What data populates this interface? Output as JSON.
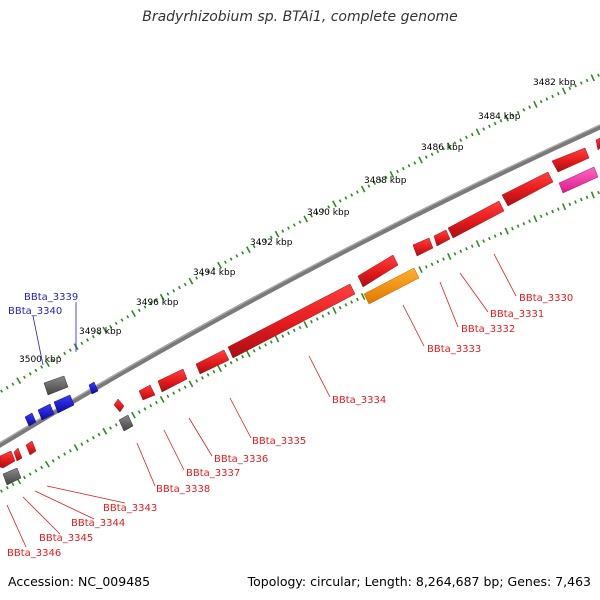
{
  "map": {
    "title": "Bradyrhizobium sp. BTAi1, complete genome",
    "accession": "Accession: NC_009485",
    "summary": "Topology: circular; Length: 8,264,687 bp; Genes: 7,463"
  },
  "scale_labels": [
    "3482 kbp",
    "3484 kbp",
    "3486 kbp",
    "3488 kbp",
    "3490 kbp",
    "3492 kbp",
    "3494 kbp",
    "3496 kbp",
    "3498 kbp",
    "3500 kbp"
  ],
  "genes": [
    {
      "label": "BBta_3330",
      "color": "#e31a1c",
      "strand": "+"
    },
    {
      "label": "BBta_3331",
      "color": "#e31a1c",
      "strand": "+"
    },
    {
      "label": "BBta_3332",
      "color": "#e31a1c",
      "strand": "+"
    },
    {
      "label": "BBta_3333",
      "color": "#e31a1c",
      "strand": "+"
    },
    {
      "label": "BBta_3334",
      "color": "#e31a1c",
      "strand": "+"
    },
    {
      "label": "BBta_3335",
      "color": "#e31a1c",
      "strand": "+"
    },
    {
      "label": "BBta_3336",
      "color": "#e31a1c",
      "strand": "+"
    },
    {
      "label": "BBta_3337",
      "color": "#e31a1c",
      "strand": "+"
    },
    {
      "label": "BBta_3338",
      "color": "#e31a1c",
      "strand": "-"
    },
    {
      "label": "BBta_3339",
      "color": "#1f1fcc",
      "strand": "-"
    },
    {
      "label": "BBta_3340",
      "color": "#1f1fcc",
      "strand": "-"
    },
    {
      "label": "BBta_3343",
      "color": "#e31a1c",
      "strand": "-"
    },
    {
      "label": "BBta_3344",
      "color": "#e31a1c",
      "strand": "-"
    },
    {
      "label": "BBta_3345",
      "color": "#e31a1c",
      "strand": "-"
    },
    {
      "label": "BBta_3346",
      "color": "#e31a1c",
      "strand": "-"
    }
  ],
  "colors": {
    "backbone": "#7a7a7a",
    "ticks": "#2e8b22",
    "cds_forward": "#e31a1c",
    "cds_reverse": "#1f1fcc",
    "orange_feature": "#ff9900",
    "pink_feature": "#ff33aa",
    "grey_feature": "#666666"
  }
}
